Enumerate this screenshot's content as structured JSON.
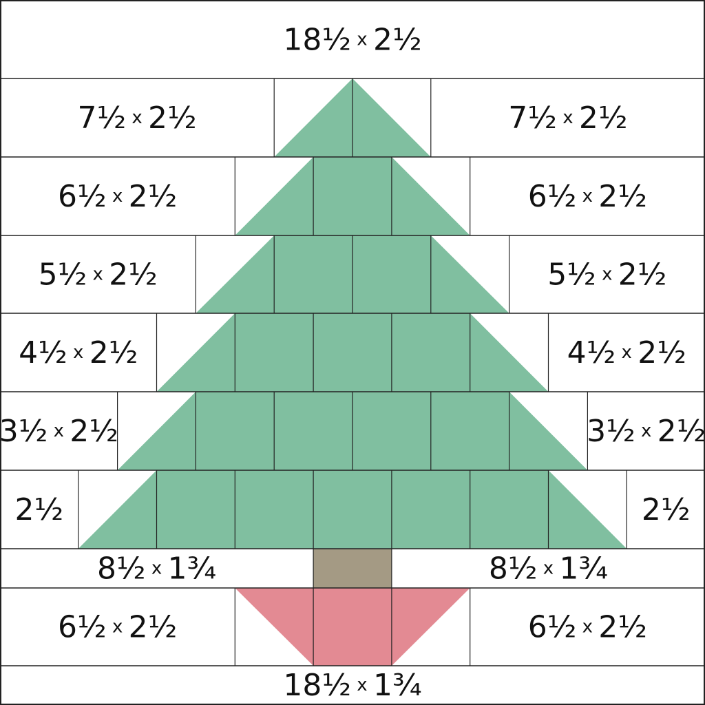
{
  "colors": {
    "tree": "#80bfa0",
    "trunk": "#a49a84",
    "pot": "#e38a93",
    "background": "#ffffff",
    "line": "#222222"
  },
  "grid": {
    "columns": 9,
    "column_size_label": "2½",
    "rows": [
      {
        "row": "top-border",
        "left": {
          "w": "18½",
          "h": "2½"
        }
      },
      {
        "row": "tree-1",
        "left": {
          "w": "7½",
          "h": "2½"
        },
        "right": {
          "w": "7½",
          "h": "2½"
        },
        "tree_squares": 0
      },
      {
        "row": "tree-2",
        "left": {
          "w": "6½",
          "h": "2½"
        },
        "right": {
          "w": "6½",
          "h": "2½"
        },
        "tree_squares": 1
      },
      {
        "row": "tree-3",
        "left": {
          "w": "5½",
          "h": "2½"
        },
        "right": {
          "w": "5½",
          "h": "2½"
        },
        "tree_squares": 2
      },
      {
        "row": "tree-4",
        "left": {
          "w": "4½",
          "h": "2½"
        },
        "right": {
          "w": "4½",
          "h": "2½"
        },
        "tree_squares": 3
      },
      {
        "row": "tree-5",
        "left": {
          "w": "3½",
          "h": "2½"
        },
        "right": {
          "w": "3½",
          "h": "2½"
        },
        "tree_squares": 4
      },
      {
        "row": "tree-6",
        "left": {
          "w": "",
          "h": "2½"
        },
        "right": {
          "w": "",
          "h": "2½"
        },
        "tree_squares": 5
      },
      {
        "row": "trunk",
        "left": {
          "w": "8½",
          "h": "1¾"
        },
        "right": {
          "w": "8½",
          "h": "1¾"
        }
      },
      {
        "row": "pot",
        "left": {
          "w": "6½",
          "h": "2½"
        },
        "right": {
          "w": "6½",
          "h": "2½"
        }
      },
      {
        "row": "bottom-border",
        "left": {
          "w": "18½",
          "h": "1¾"
        }
      }
    ]
  },
  "labels": {
    "x": "x"
  }
}
